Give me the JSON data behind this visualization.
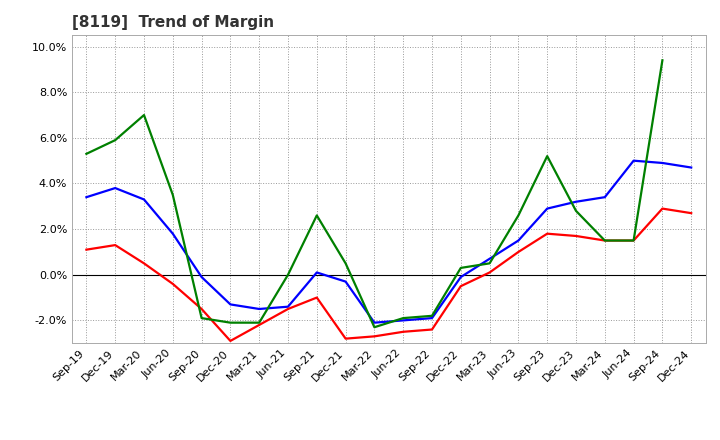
{
  "title": "[8119]  Trend of Margin",
  "x_labels": [
    "Sep-19",
    "Dec-19",
    "Mar-20",
    "Jun-20",
    "Sep-20",
    "Dec-20",
    "Mar-21",
    "Jun-21",
    "Sep-21",
    "Dec-21",
    "Mar-22",
    "Jun-22",
    "Sep-22",
    "Dec-22",
    "Mar-23",
    "Jun-23",
    "Sep-23",
    "Dec-23",
    "Mar-24",
    "Jun-24",
    "Sep-24",
    "Dec-24"
  ],
  "ordinary_income": [
    3.4,
    3.8,
    3.3,
    1.8,
    -0.1,
    -1.3,
    -1.5,
    -1.4,
    0.1,
    -0.3,
    -2.1,
    -2.0,
    -1.9,
    -0.1,
    0.7,
    1.5,
    2.9,
    3.2,
    3.4,
    5.0,
    4.9,
    4.7
  ],
  "net_income": [
    1.1,
    1.3,
    0.5,
    -0.4,
    -1.5,
    -2.9,
    -2.2,
    -1.5,
    -1.0,
    -2.8,
    -2.7,
    -2.5,
    -2.4,
    -0.5,
    0.1,
    1.0,
    1.8,
    1.7,
    1.5,
    1.5,
    2.9,
    2.7
  ],
  "operating_cashflow": [
    5.3,
    5.9,
    7.0,
    3.5,
    -1.9,
    -2.1,
    -2.1,
    0.0,
    2.6,
    0.5,
    -2.3,
    -1.9,
    -1.8,
    0.3,
    0.5,
    2.6,
    5.2,
    2.8,
    1.5,
    1.5,
    9.4,
    null
  ],
  "ordinary_income_color": "#0000FF",
  "net_income_color": "#FF0000",
  "operating_cashflow_color": "#008000",
  "ylim": [
    -3.0,
    10.5
  ],
  "yticks": [
    -2.0,
    0.0,
    2.0,
    4.0,
    6.0,
    8.0,
    10.0
  ],
  "background_color": "#FFFFFF",
  "plot_bg_color": "#FFFFFF",
  "grid_color": "#999999",
  "title_fontsize": 11,
  "title_color": "#333333",
  "legend_fontsize": 9,
  "axis_fontsize": 8,
  "line_width": 1.6
}
